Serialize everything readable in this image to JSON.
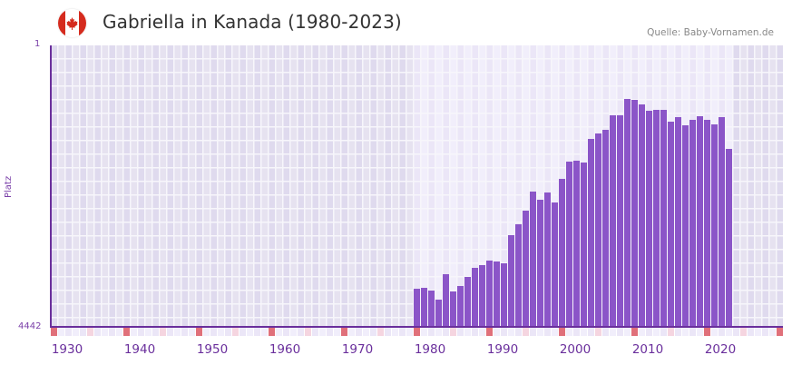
{
  "header": {
    "title": "Gabriella in Kanada (1980-2023)",
    "source": "Quelle: Baby-Vornamen.de",
    "flag_icon": "canada-flag-icon"
  },
  "colors": {
    "bar": "#8b55c8",
    "axis": "#6a2f9c",
    "bg_outside": "#e3dff0",
    "bg_inside": "#efebfa",
    "grid": "#f7f6fb",
    "decade_marker": "#e0707a",
    "half_decade_marker": "#f5d5e0"
  },
  "chart_data": {
    "type": "bar",
    "title": "Gabriella in Kanada (1980-2023)",
    "xlabel": "",
    "ylabel": "Platz",
    "y_inverted": true,
    "ylim": [
      4442,
      1
    ],
    "yticks": [
      "1",
      "4442"
    ],
    "xlim": [
      1930,
      2030
    ],
    "xticks": [
      "1930",
      "1940",
      "1950",
      "1960",
      "1970",
      "1980",
      "1990",
      "2000",
      "2010",
      "2020"
    ],
    "grid": true,
    "legend": null,
    "categories": [
      1980,
      1981,
      1982,
      1983,
      1984,
      1985,
      1986,
      1987,
      1988,
      1989,
      1990,
      1991,
      1992,
      1993,
      1994,
      1995,
      1996,
      1997,
      1998,
      1999,
      2000,
      2001,
      2002,
      2003,
      2004,
      2005,
      2006,
      2007,
      2008,
      2009,
      2010,
      2011,
      2012,
      2013,
      2014,
      2015,
      2016,
      2017,
      2018,
      2019,
      2020,
      2021,
      2022,
      2023
    ],
    "values": [
      3844,
      3830,
      3873,
      4016,
      3615,
      3887,
      3801,
      3658,
      3515,
      3472,
      3400,
      3415,
      3443,
      3000,
      2828,
      2613,
      2312,
      2441,
      2326,
      2484,
      2112,
      1840,
      1826,
      1855,
      1482,
      1396,
      1339,
      1109,
      1109,
      851,
      865,
      937,
      1037,
      1023,
      1023,
      1209,
      1138,
      1267,
      1181,
      1123,
      1181,
      1252,
      1138,
      1639
    ]
  },
  "axis": {
    "y_top_label": "1",
    "y_bottom_label": "4442",
    "y_title": "Platz",
    "x_labels": [
      "1930",
      "1940",
      "1950",
      "1960",
      "1970",
      "1980",
      "1990",
      "2000",
      "2010",
      "2020"
    ]
  }
}
